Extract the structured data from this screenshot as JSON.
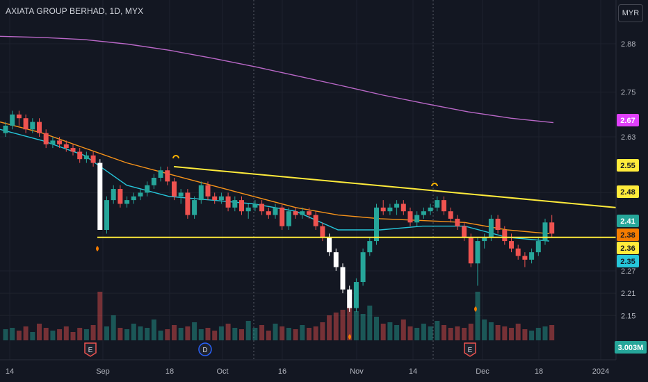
{
  "header": {
    "title": "AXIATA GROUP BERHAD, 1D, MYX",
    "currency": "MYR"
  },
  "chart_data": {
    "type": "candlestick",
    "price_ticks": [
      "2.88",
      "2.75",
      "2.63",
      "2.48",
      "2.27",
      "2.21",
      "2.15"
    ],
    "x_ticks": [
      "14",
      "Sep",
      "18",
      "Oct",
      "16",
      "Nov",
      "14",
      "Dec",
      "18",
      "2024"
    ],
    "badges": [
      {
        "label": "2.67",
        "value": 2.67,
        "color": "#e040fb",
        "text_color": "#ffffff"
      },
      {
        "label": "2.55",
        "value": 2.55,
        "color": "#ffeb3b",
        "text_color": "#131722"
      },
      {
        "label": "2.48",
        "value": 2.48,
        "color": "#ffeb3b",
        "text_color": "#131722"
      },
      {
        "label": "2.41",
        "value": 2.41,
        "color": "#26a69a",
        "text_color": "#ffffff"
      },
      {
        "label": "2.38",
        "value": 2.38,
        "color": "#f57c00",
        "text_color": "#131722"
      },
      {
        "label": "2.36",
        "value": 2.36,
        "color": "#ffeb3b",
        "text_color": "#131722"
      },
      {
        "label": "2.35",
        "value": 2.35,
        "color": "#26c6da",
        "text_color": "#131722"
      }
    ],
    "volume_label": "3.003M",
    "colors": {
      "up": "#26a69a",
      "down": "#ef5350",
      "gap": "#ffffff",
      "ma_long": "#ba68c8",
      "ma_mid": "#f7931a",
      "ma_short": "#26c6da",
      "trendline": "#ffeb3b"
    },
    "candles": [
      [
        2.64,
        2.67,
        2.63,
        2.66
      ],
      [
        2.66,
        2.7,
        2.65,
        2.69
      ],
      [
        2.69,
        2.7,
        2.66,
        2.68
      ],
      [
        2.68,
        2.69,
        2.64,
        2.65
      ],
      [
        2.65,
        2.68,
        2.64,
        2.67
      ],
      [
        2.67,
        2.68,
        2.63,
        2.64
      ],
      [
        2.64,
        2.65,
        2.6,
        2.61
      ],
      [
        2.61,
        2.63,
        2.6,
        2.62
      ],
      [
        2.62,
        2.63,
        2.6,
        2.61
      ],
      [
        2.61,
        2.62,
        2.59,
        2.6
      ],
      [
        2.6,
        2.61,
        2.58,
        2.59
      ],
      [
        2.59,
        2.6,
        2.56,
        2.57
      ],
      [
        2.57,
        2.59,
        2.56,
        2.58
      ],
      [
        2.58,
        2.59,
        2.55,
        2.56
      ],
      [
        2.56,
        2.57,
        2.38,
        2.38
      ],
      [
        2.38,
        2.47,
        2.37,
        2.46
      ],
      [
        2.46,
        2.5,
        2.45,
        2.49
      ],
      [
        2.49,
        2.5,
        2.44,
        2.45
      ],
      [
        2.45,
        2.47,
        2.44,
        2.46
      ],
      [
        2.46,
        2.48,
        2.45,
        2.47
      ],
      [
        2.47,
        2.49,
        2.46,
        2.48
      ],
      [
        2.48,
        2.51,
        2.47,
        2.5
      ],
      [
        2.5,
        2.53,
        2.49,
        2.52
      ],
      [
        2.52,
        2.55,
        2.51,
        2.54
      ],
      [
        2.54,
        2.55,
        2.5,
        2.51
      ],
      [
        2.51,
        2.52,
        2.46,
        2.47
      ],
      [
        2.47,
        2.49,
        2.45,
        2.48
      ],
      [
        2.48,
        2.49,
        2.41,
        2.42
      ],
      [
        2.42,
        2.47,
        2.41,
        2.46
      ],
      [
        2.46,
        2.51,
        2.45,
        2.5
      ],
      [
        2.5,
        2.51,
        2.46,
        2.47
      ],
      [
        2.47,
        2.48,
        2.45,
        2.46
      ],
      [
        2.46,
        2.48,
        2.45,
        2.47
      ],
      [
        2.47,
        2.48,
        2.43,
        2.44
      ],
      [
        2.44,
        2.47,
        2.43,
        2.46
      ],
      [
        2.46,
        2.47,
        2.42,
        2.43
      ],
      [
        2.43,
        2.45,
        2.41,
        2.44
      ],
      [
        2.44,
        2.46,
        2.43,
        2.45
      ],
      [
        2.45,
        2.46,
        2.42,
        2.43
      ],
      [
        2.43,
        2.44,
        2.41,
        2.42
      ],
      [
        2.42,
        2.45,
        2.41,
        2.44
      ],
      [
        2.44,
        2.45,
        2.38,
        2.39
      ],
      [
        2.39,
        2.44,
        2.38,
        2.43
      ],
      [
        2.43,
        2.44,
        2.41,
        2.42
      ],
      [
        2.42,
        2.44,
        2.41,
        2.43
      ],
      [
        2.43,
        2.44,
        2.41,
        2.42
      ],
      [
        2.42,
        2.43,
        2.38,
        2.39
      ],
      [
        2.39,
        2.4,
        2.35,
        2.36
      ],
      [
        2.36,
        2.37,
        2.31,
        2.32
      ],
      [
        2.32,
        2.33,
        2.27,
        2.28
      ],
      [
        2.28,
        2.29,
        2.21,
        2.22
      ],
      [
        2.22,
        2.23,
        2.16,
        2.17
      ],
      [
        2.17,
        2.25,
        2.16,
        2.24
      ],
      [
        2.24,
        2.33,
        2.23,
        2.32
      ],
      [
        2.32,
        2.36,
        2.31,
        2.35
      ],
      [
        2.35,
        2.45,
        2.34,
        2.44
      ],
      [
        2.44,
        2.46,
        2.42,
        2.43
      ],
      [
        2.43,
        2.45,
        2.42,
        2.44
      ],
      [
        2.44,
        2.46,
        2.42,
        2.45
      ],
      [
        2.45,
        2.46,
        2.42,
        2.43
      ],
      [
        2.43,
        2.44,
        2.39,
        2.4
      ],
      [
        2.4,
        2.43,
        2.39,
        2.42
      ],
      [
        2.42,
        2.44,
        2.41,
        2.43
      ],
      [
        2.43,
        2.45,
        2.42,
        2.44
      ],
      [
        2.44,
        2.47,
        2.43,
        2.46
      ],
      [
        2.46,
        2.47,
        2.42,
        2.43
      ],
      [
        2.43,
        2.44,
        2.4,
        2.41
      ],
      [
        2.41,
        2.42,
        2.38,
        2.39
      ],
      [
        2.39,
        2.4,
        2.35,
        2.36
      ],
      [
        2.36,
        2.37,
        2.28,
        2.29
      ],
      [
        2.29,
        2.36,
        2.23,
        2.35
      ],
      [
        2.35,
        2.37,
        2.33,
        2.36
      ],
      [
        2.36,
        2.42,
        2.35,
        2.41
      ],
      [
        2.41,
        2.42,
        2.37,
        2.38
      ],
      [
        2.38,
        2.39,
        2.34,
        2.35
      ],
      [
        2.35,
        2.37,
        2.32,
        2.33
      ],
      [
        2.33,
        2.34,
        2.3,
        2.31
      ],
      [
        2.31,
        2.32,
        2.28,
        2.3
      ],
      [
        2.3,
        2.33,
        2.29,
        2.32
      ],
      [
        2.32,
        2.36,
        2.31,
        2.35
      ],
      [
        2.35,
        2.41,
        2.34,
        2.4
      ],
      [
        2.4,
        2.42,
        2.36,
        2.37
      ]
    ],
    "gap_candles": [
      14,
      48,
      49,
      50,
      51
    ],
    "volumes": [
      8,
      9,
      7,
      10,
      6,
      12,
      9,
      7,
      8,
      10,
      6,
      9,
      8,
      11,
      35,
      10,
      18,
      9,
      8,
      12,
      10,
      9,
      15,
      7,
      8,
      11,
      9,
      10,
      13,
      8,
      9,
      7,
      10,
      12,
      9,
      8,
      14,
      9,
      11,
      7,
      12,
      10,
      9,
      8,
      11,
      9,
      10,
      13,
      18,
      20,
      22,
      24,
      21,
      19,
      25,
      17,
      12,
      13,
      11,
      15,
      10,
      9,
      12,
      10,
      14,
      11,
      9,
      10,
      9,
      12,
      35,
      15,
      13,
      11,
      10,
      9,
      12,
      8,
      7,
      9,
      10,
      11
    ],
    "ma_long": [
      2.9,
      2.897,
      2.891,
      2.879,
      2.862,
      2.841,
      2.818,
      2.793,
      2.768,
      2.742,
      2.719,
      2.697,
      2.68,
      2.668
    ],
    "ma_mid": [
      2.67,
      2.64,
      2.6,
      2.56,
      2.53,
      2.5,
      2.47,
      2.44,
      2.42,
      2.41,
      2.405,
      2.4,
      2.38,
      2.37
    ],
    "ma_short": [
      2.65,
      2.62,
      2.58,
      2.5,
      2.47,
      2.46,
      2.45,
      2.43,
      2.38,
      2.38,
      2.39,
      2.39,
      2.36,
      2.35
    ],
    "trendline": {
      "start": 2.55,
      "end": 2.44
    },
    "support_line": 2.36,
    "event_markers": [
      {
        "label": "E",
        "type": "earnings"
      },
      {
        "label": "D",
        "type": "dividend"
      },
      {
        "label": "E",
        "type": "earnings"
      }
    ]
  }
}
